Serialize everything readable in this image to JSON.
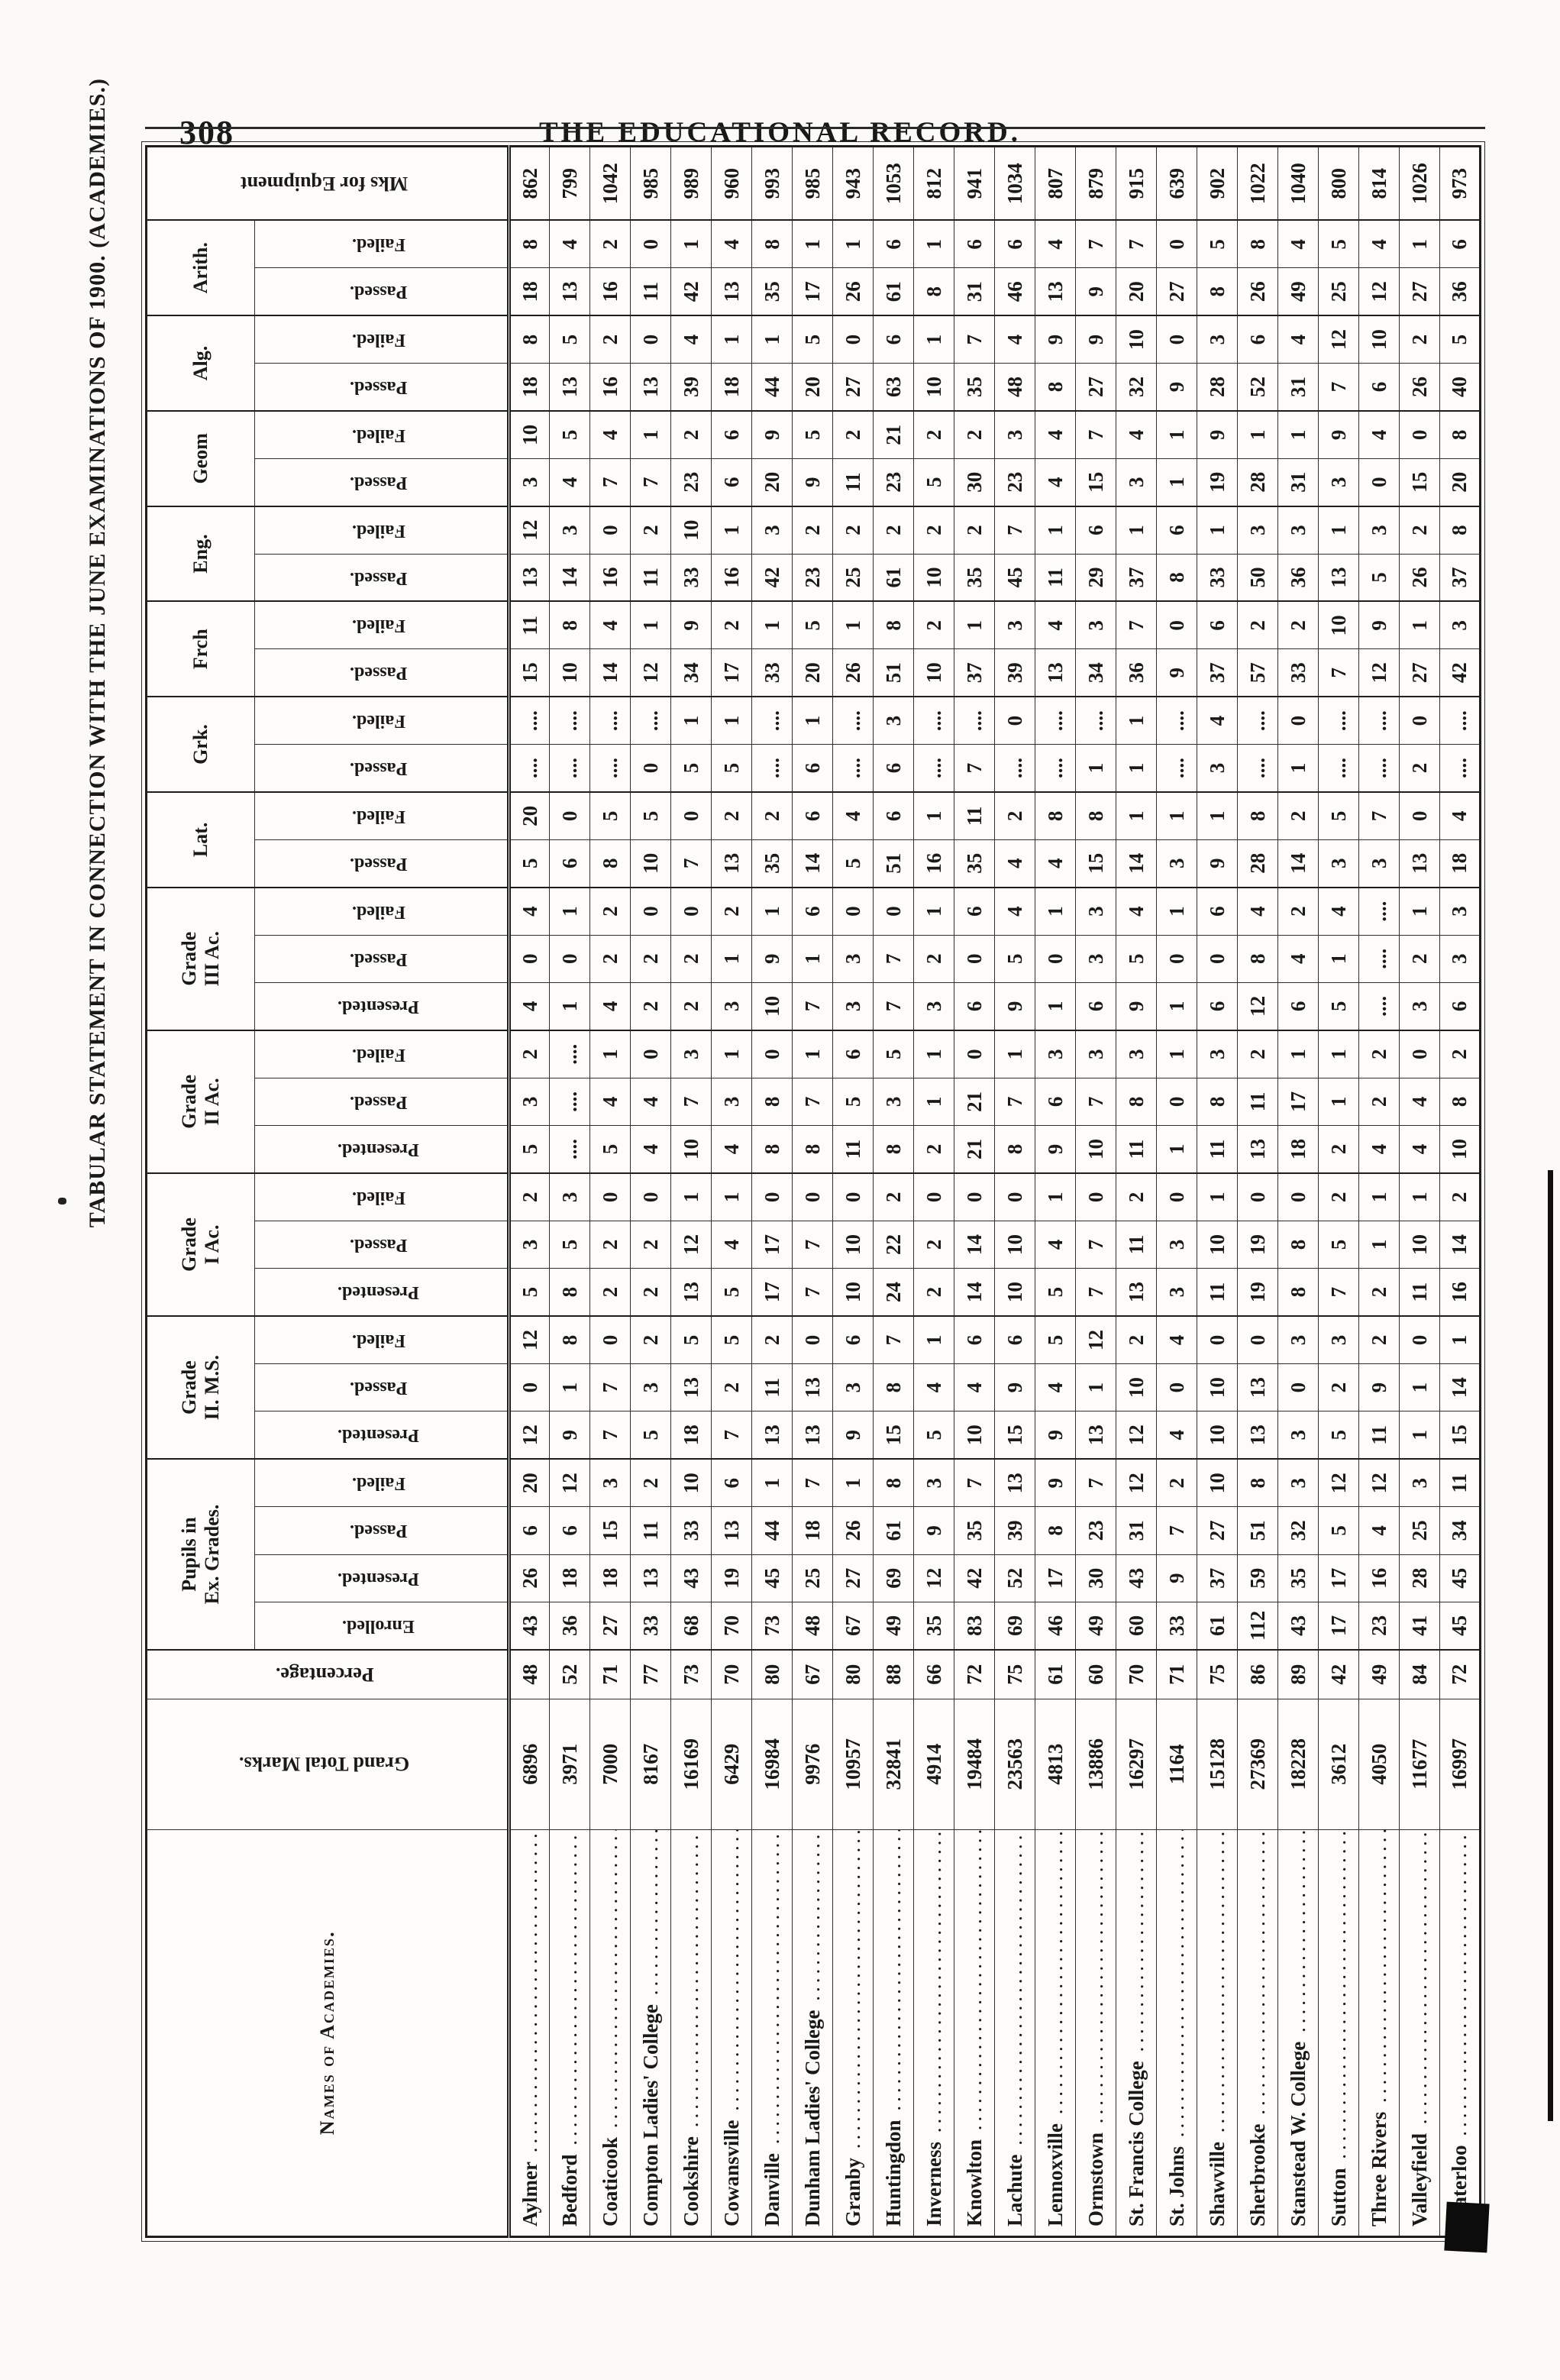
{
  "page": {
    "number": "308",
    "journal": "THE EDUCATIONAL RECORD."
  },
  "table": {
    "title": "TABULAR STATEMENT IN CONNECTION WITH THE JUNE EXAMINATIONS OF 1900. (ACADEMIES.)",
    "names_header": "Names of Academies.",
    "lead_columns": [
      "Names of Academies.",
      "Grand Total Marks.",
      "Percentage."
    ],
    "tail_column": "Mks for Equipment",
    "col_groups": [
      {
        "label": "Pupils in\nEx. Grades.",
        "subs": [
          "Enrolled.",
          "Presented.",
          "Passed.",
          "Failed."
        ]
      },
      {
        "label": "Grade\nII. M.S.",
        "subs": [
          "Presented.",
          "Passed.",
          "Failed."
        ]
      },
      {
        "label": "Grade\nI Ac.",
        "subs": [
          "Presented.",
          "Passed.",
          "Failed."
        ]
      },
      {
        "label": "Grade\nII Ac.",
        "subs": [
          "Presented.",
          "Passed.",
          "Failed."
        ]
      },
      {
        "label": "Grade\nIII Ac.",
        "subs": [
          "Presented.",
          "Passed.",
          "Failed."
        ]
      },
      {
        "label": "Lat.",
        "subs": [
          "Passed.",
          "Failed."
        ]
      },
      {
        "label": "Grk.",
        "subs": [
          "Passed.",
          "Failed."
        ]
      },
      {
        "label": "Frch",
        "subs": [
          "Passed.",
          "Failed."
        ]
      },
      {
        "label": "Eng.",
        "subs": [
          "Passed.",
          "Failed."
        ]
      },
      {
        "label": "Geom",
        "subs": [
          "Passed.",
          "Failed."
        ]
      },
      {
        "label": "Alg.",
        "subs": [
          "Passed.",
          "Failed."
        ]
      },
      {
        "label": "Arith.",
        "subs": [
          "Passed.",
          "Failed."
        ]
      }
    ],
    "value_order": [
      "ex_enrolled",
      "ex_presented",
      "ex_passed",
      "ex_failed",
      "ms_presented",
      "ms_passed",
      "ms_failed",
      "g1_presented",
      "g1_passed",
      "g1_failed",
      "g2_presented",
      "g2_passed",
      "g2_failed",
      "g3_presented",
      "g3_passed",
      "g3_failed",
      "lat_passed",
      "lat_failed",
      "grk_passed",
      "grk_failed",
      "frch_passed",
      "frch_failed",
      "eng_passed",
      "eng_failed",
      "geom_passed",
      "geom_failed",
      "alg_passed",
      "alg_failed",
      "arith_passed",
      "arith_failed"
    ],
    "rows": [
      {
        "name": "Aylmer",
        "gt": "6896",
        "pct": "48",
        "v": [
          43,
          26,
          6,
          20,
          12,
          0,
          12,
          5,
          3,
          2,
          5,
          3,
          2,
          4,
          0,
          4,
          5,
          20,
          "",
          "",
          15,
          11,
          13,
          12,
          3,
          10,
          18,
          8,
          18,
          8
        ],
        "mks": "862"
      },
      {
        "name": "Bedford",
        "gt": "3971",
        "pct": "52",
        "v": [
          36,
          18,
          6,
          12,
          9,
          1,
          8,
          8,
          5,
          3,
          "",
          "",
          "",
          1,
          0,
          1,
          6,
          0,
          "",
          "",
          10,
          8,
          14,
          3,
          4,
          5,
          13,
          5,
          13,
          4
        ],
        "mks": "799"
      },
      {
        "name": "Coaticook",
        "gt": "7000",
        "pct": "71",
        "v": [
          27,
          18,
          15,
          3,
          7,
          7,
          0,
          2,
          2,
          0,
          5,
          4,
          1,
          4,
          2,
          2,
          8,
          5,
          "",
          "",
          14,
          4,
          16,
          0,
          7,
          4,
          16,
          2,
          16,
          2
        ],
        "mks": "1042"
      },
      {
        "name": "Compton Ladies' College",
        "gt": "8167",
        "pct": "77",
        "v": [
          33,
          13,
          11,
          2,
          5,
          3,
          2,
          2,
          2,
          0,
          4,
          4,
          0,
          2,
          2,
          0,
          10,
          5,
          0,
          "",
          12,
          1,
          11,
          2,
          7,
          1,
          13,
          0,
          11,
          0
        ],
        "mks": "985"
      },
      {
        "name": "Cookshire",
        "gt": "16169",
        "pct": "73",
        "v": [
          68,
          43,
          33,
          10,
          18,
          13,
          5,
          13,
          12,
          1,
          10,
          7,
          3,
          2,
          2,
          0,
          7,
          0,
          5,
          1,
          34,
          9,
          33,
          10,
          23,
          2,
          39,
          4,
          42,
          1
        ],
        "mks": "989"
      },
      {
        "name": "Cowansville",
        "gt": "6429",
        "pct": "70",
        "v": [
          70,
          19,
          13,
          6,
          7,
          2,
          5,
          5,
          4,
          1,
          4,
          3,
          1,
          3,
          1,
          2,
          13,
          2,
          5,
          1,
          17,
          2,
          16,
          1,
          6,
          6,
          18,
          1,
          13,
          4
        ],
        "mks": "960"
      },
      {
        "name": "Danville",
        "gt": "16984",
        "pct": "80",
        "v": [
          73,
          45,
          44,
          1,
          13,
          11,
          2,
          17,
          17,
          0,
          8,
          8,
          0,
          10,
          9,
          1,
          35,
          2,
          "",
          "",
          33,
          1,
          42,
          3,
          20,
          9,
          44,
          1,
          35,
          8
        ],
        "mks": "993"
      },
      {
        "name": "Dunham Ladies' College",
        "gt": "9976",
        "pct": "67",
        "v": [
          48,
          25,
          18,
          7,
          13,
          13,
          0,
          7,
          7,
          0,
          8,
          7,
          1,
          7,
          1,
          6,
          14,
          6,
          6,
          1,
          20,
          5,
          23,
          2,
          9,
          5,
          20,
          5,
          17,
          1
        ],
        "mks": "985"
      },
      {
        "name": "Granby",
        "gt": "10957",
        "pct": "80",
        "v": [
          67,
          27,
          26,
          1,
          9,
          3,
          6,
          10,
          10,
          0,
          11,
          5,
          6,
          3,
          3,
          0,
          5,
          4,
          "",
          "",
          26,
          1,
          25,
          2,
          11,
          2,
          27,
          0,
          26,
          1
        ],
        "mks": "943"
      },
      {
        "name": "Huntingdon",
        "gt": "32841",
        "pct": "88",
        "v": [
          49,
          69,
          61,
          8,
          15,
          8,
          7,
          24,
          22,
          2,
          8,
          3,
          5,
          7,
          7,
          0,
          51,
          6,
          6,
          3,
          51,
          8,
          61,
          2,
          23,
          21,
          63,
          6,
          61,
          6
        ],
        "mks": "1053"
      },
      {
        "name": "Inverness",
        "gt": "4914",
        "pct": "66",
        "v": [
          35,
          12,
          9,
          3,
          5,
          4,
          1,
          2,
          2,
          0,
          2,
          1,
          1,
          3,
          2,
          1,
          16,
          1,
          "",
          "",
          10,
          2,
          10,
          2,
          5,
          2,
          10,
          1,
          8,
          1
        ],
        "mks": "812"
      },
      {
        "name": "Knowlton",
        "gt": "19484",
        "pct": "72",
        "v": [
          83,
          42,
          35,
          7,
          10,
          4,
          6,
          14,
          14,
          0,
          21,
          21,
          0,
          6,
          0,
          6,
          35,
          11,
          7,
          "",
          37,
          1,
          35,
          2,
          30,
          2,
          35,
          7,
          31,
          6
        ],
        "mks": "941"
      },
      {
        "name": "Lachute",
        "gt": "23563",
        "pct": "75",
        "v": [
          69,
          52,
          39,
          13,
          15,
          9,
          6,
          10,
          10,
          0,
          8,
          7,
          1,
          9,
          5,
          4,
          4,
          2,
          "",
          0,
          39,
          3,
          45,
          7,
          23,
          3,
          48,
          4,
          46,
          6
        ],
        "mks": "1034"
      },
      {
        "name": "Lennoxville",
        "gt": "4813",
        "pct": "61",
        "v": [
          46,
          17,
          8,
          9,
          9,
          4,
          5,
          5,
          4,
          1,
          9,
          6,
          3,
          1,
          0,
          1,
          4,
          8,
          "",
          "",
          13,
          4,
          11,
          1,
          4,
          4,
          8,
          9,
          13,
          4
        ],
        "mks": "807"
      },
      {
        "name": "Ormstown",
        "gt": "13886",
        "pct": "60",
        "v": [
          49,
          30,
          23,
          7,
          13,
          1,
          12,
          7,
          7,
          0,
          10,
          7,
          3,
          6,
          3,
          3,
          15,
          8,
          1,
          "",
          34,
          3,
          29,
          6,
          15,
          7,
          27,
          9,
          9,
          7
        ],
        "mks": "879"
      },
      {
        "name": "St. Francis College",
        "gt": "16297",
        "pct": "70",
        "v": [
          60,
          43,
          31,
          12,
          12,
          10,
          2,
          13,
          11,
          2,
          11,
          8,
          3,
          9,
          5,
          4,
          14,
          1,
          1,
          1,
          36,
          7,
          37,
          1,
          3,
          4,
          32,
          10,
          20,
          7
        ],
        "mks": "915"
      },
      {
        "name": "St. Johns",
        "gt": "1164",
        "pct": "71",
        "v": [
          33,
          9,
          7,
          2,
          4,
          0,
          4,
          3,
          3,
          0,
          1,
          0,
          1,
          1,
          0,
          1,
          3,
          1,
          "",
          "",
          9,
          0,
          8,
          6,
          1,
          1,
          9,
          0,
          27,
          0
        ],
        "mks": "639"
      },
      {
        "name": "Shawville",
        "gt": "15128",
        "pct": "75",
        "v": [
          61,
          37,
          27,
          10,
          10,
          10,
          0,
          11,
          10,
          1,
          11,
          8,
          3,
          6,
          0,
          6,
          9,
          1,
          3,
          4,
          37,
          6,
          33,
          1,
          19,
          9,
          28,
          3,
          8,
          5
        ],
        "mks": "902"
      },
      {
        "name": "Sherbrooke",
        "gt": "27369",
        "pct": "86",
        "v": [
          112,
          59,
          51,
          8,
          13,
          13,
          0,
          19,
          19,
          0,
          13,
          11,
          2,
          12,
          8,
          4,
          28,
          8,
          "",
          "",
          57,
          2,
          50,
          3,
          28,
          1,
          52,
          6,
          26,
          8
        ],
        "mks": "1022"
      },
      {
        "name": "Stanstead W. College",
        "gt": "18228",
        "pct": "89",
        "v": [
          43,
          35,
          32,
          3,
          3,
          0,
          3,
          8,
          8,
          0,
          18,
          17,
          1,
          6,
          4,
          2,
          14,
          2,
          1,
          0,
          33,
          2,
          36,
          3,
          31,
          1,
          31,
          4,
          49,
          4
        ],
        "mks": "1040"
      },
      {
        "name": "Sutton",
        "gt": "3612",
        "pct": "42",
        "v": [
          17,
          17,
          5,
          12,
          5,
          2,
          3,
          7,
          5,
          2,
          2,
          1,
          1,
          5,
          1,
          4,
          3,
          5,
          "",
          "",
          7,
          10,
          13,
          1,
          3,
          9,
          7,
          12,
          25,
          5
        ],
        "mks": "800"
      },
      {
        "name": "Three Rivers",
        "gt": "4050",
        "pct": "49",
        "v": [
          23,
          16,
          4,
          12,
          11,
          9,
          2,
          2,
          1,
          1,
          4,
          2,
          2,
          "",
          "",
          "",
          3,
          7,
          "",
          "",
          12,
          9,
          5,
          3,
          0,
          4,
          6,
          10,
          12,
          4
        ],
        "mks": "814"
      },
      {
        "name": "Valleyfield",
        "gt": "11677",
        "pct": "84",
        "v": [
          41,
          28,
          25,
          3,
          1,
          1,
          0,
          11,
          10,
          1,
          4,
          4,
          0,
          3,
          2,
          1,
          13,
          0,
          2,
          0,
          27,
          1,
          26,
          2,
          15,
          0,
          26,
          2,
          27,
          1
        ],
        "mks": "1026"
      },
      {
        "name": "Waterloo",
        "gt": "16997",
        "pct": "72",
        "v": [
          45,
          45,
          34,
          11,
          15,
          14,
          1,
          16,
          14,
          2,
          10,
          8,
          2,
          6,
          3,
          3,
          18,
          4,
          "",
          "",
          42,
          3,
          37,
          8,
          20,
          8,
          40,
          5,
          36,
          6
        ],
        "mks": "973"
      }
    ]
  }
}
